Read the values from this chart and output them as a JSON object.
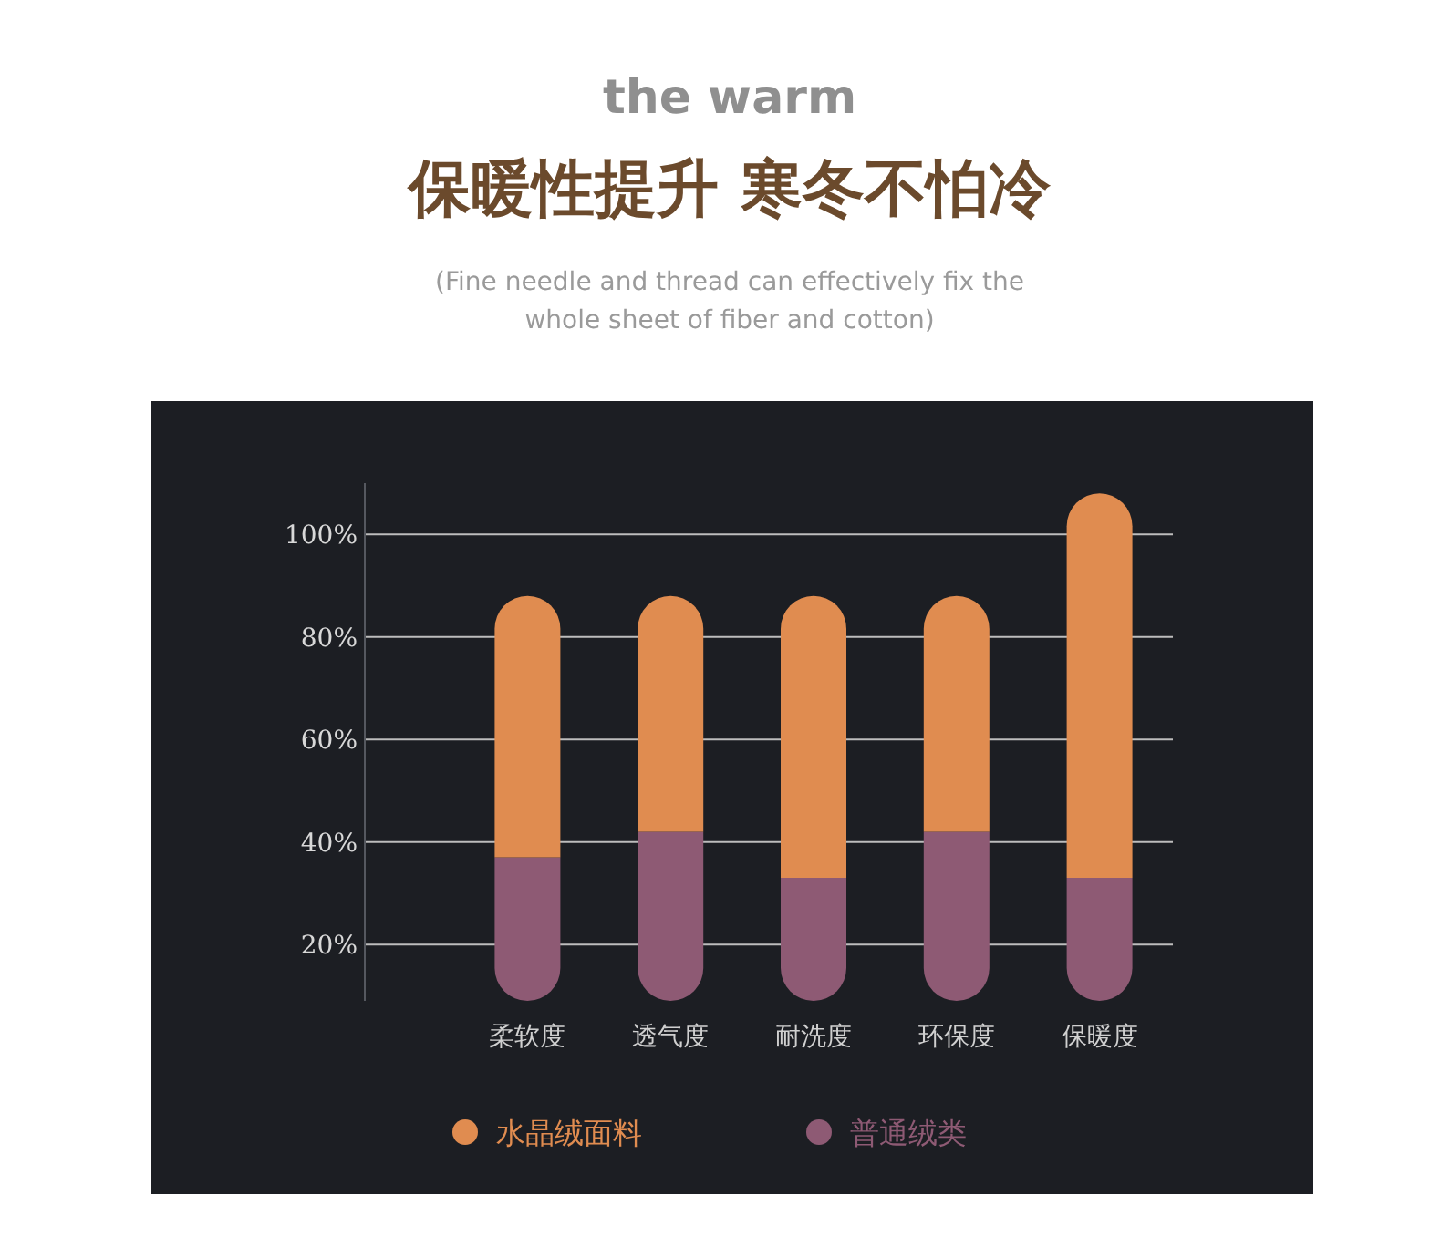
{
  "chart_data": {
    "type": "bar",
    "title": "保暖性提升 寒冬不怕冷",
    "subtitle": "(Fine needle and thread can effectively fix the whole sheet of fiber and cotton)",
    "annotations": [
      "the warm"
    ],
    "categories": [
      "柔软度",
      "透气度",
      "耐洗度",
      "环保度",
      "保暖度"
    ],
    "stacked": true,
    "series": [
      {
        "name": "普通绒类",
        "color": "#8e5a74",
        "values": [
          37,
          42,
          33,
          42,
          33
        ]
      },
      {
        "name": "水晶绒面料",
        "color": "#e08c50",
        "values": [
          51,
          46,
          55,
          46,
          75
        ]
      }
    ],
    "ylim": [
      9,
      110
    ],
    "yticks": [
      {
        "value": 20,
        "label": "20%"
      },
      {
        "value": 40,
        "label": "40%"
      },
      {
        "value": 60,
        "label": "60%"
      },
      {
        "value": 80,
        "label": "80%"
      },
      {
        "value": 100,
        "label": "100%"
      }
    ],
    "grid": "y",
    "legend": "bottom"
  }
}
